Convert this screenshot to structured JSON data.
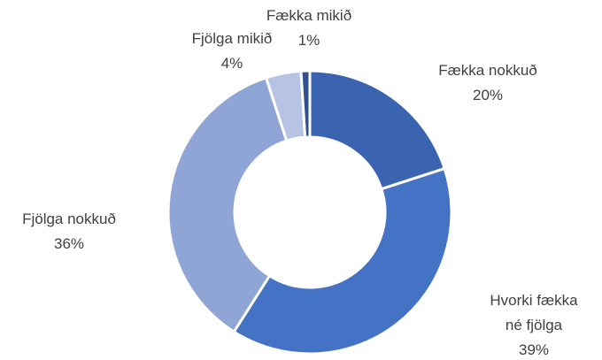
{
  "chart_data": {
    "type": "donut",
    "categories": [
      "Fækka nokkuð",
      "Hvorki fækka né fjölga",
      "Fjölga nokkuð",
      "Fjölga mikið",
      "Fækka mikið"
    ],
    "values": [
      20,
      39,
      36,
      4,
      1
    ],
    "value_labels": [
      "20%",
      "39%",
      "36%",
      "4%",
      "1%"
    ],
    "colors": [
      "#3a63b0",
      "#4472c4",
      "#8fa5d6",
      "#b6c3e5",
      "#2f528f"
    ]
  }
}
